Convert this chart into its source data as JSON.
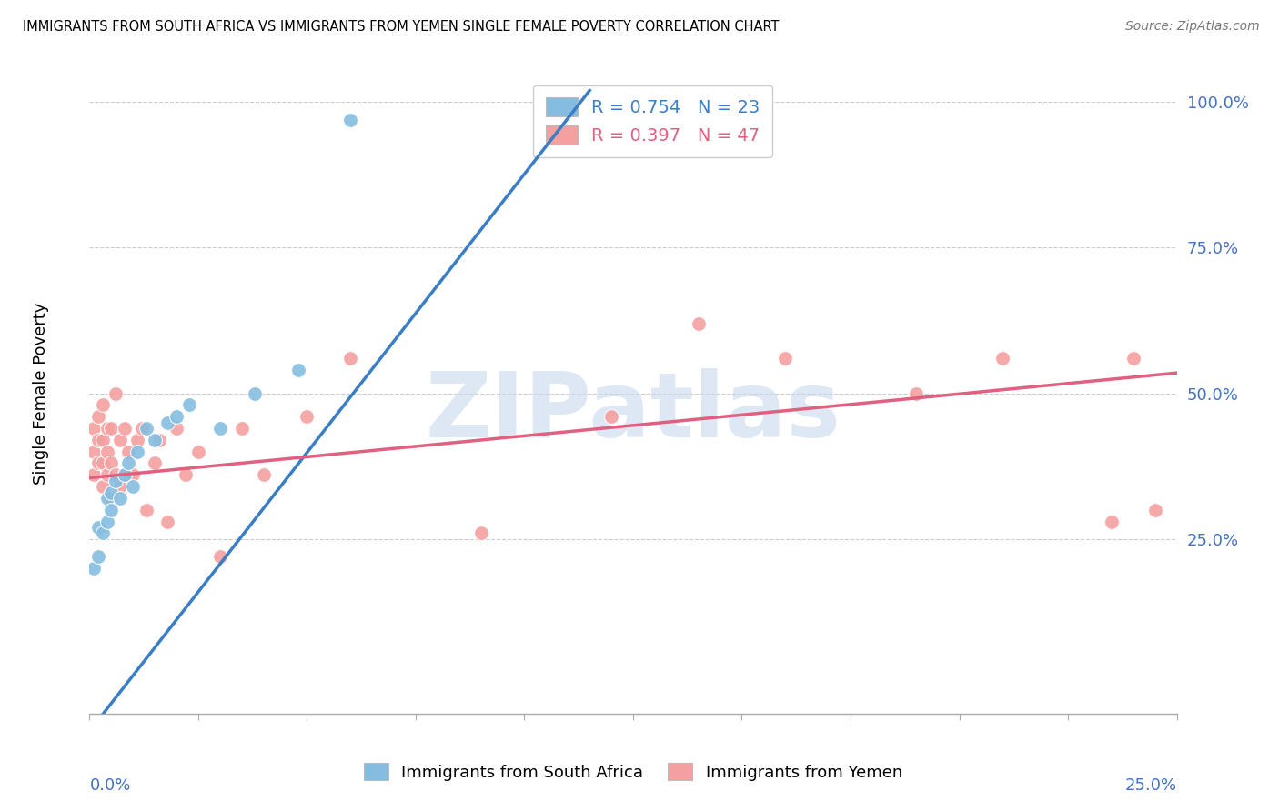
{
  "title": "IMMIGRANTS FROM SOUTH AFRICA VS IMMIGRANTS FROM YEMEN SINGLE FEMALE POVERTY CORRELATION CHART",
  "source": "Source: ZipAtlas.com",
  "ylabel": "Single Female Poverty",
  "legend_blue_r": "0.754",
  "legend_blue_n": "23",
  "legend_pink_r": "0.397",
  "legend_pink_n": "47",
  "watermark": "ZIPatlas",
  "blue_color": "#85bde0",
  "pink_color": "#f4a0a0",
  "blue_line_color": "#3a7ec6",
  "pink_line_color": "#e06080",
  "xlim": [
    0.0,
    0.25
  ],
  "ylim": [
    -0.05,
    1.05
  ],
  "sa_x": [
    0.001,
    0.002,
    0.002,
    0.003,
    0.004,
    0.004,
    0.005,
    0.005,
    0.006,
    0.007,
    0.008,
    0.009,
    0.01,
    0.011,
    0.013,
    0.015,
    0.018,
    0.02,
    0.023,
    0.03,
    0.038,
    0.048,
    0.06
  ],
  "sa_y": [
    0.2,
    0.22,
    0.27,
    0.26,
    0.28,
    0.32,
    0.3,
    0.33,
    0.35,
    0.32,
    0.36,
    0.38,
    0.34,
    0.4,
    0.44,
    0.42,
    0.45,
    0.46,
    0.48,
    0.44,
    0.5,
    0.54,
    0.97
  ],
  "ye_x": [
    0.001,
    0.001,
    0.001,
    0.002,
    0.002,
    0.002,
    0.003,
    0.003,
    0.003,
    0.003,
    0.004,
    0.004,
    0.004,
    0.005,
    0.005,
    0.005,
    0.006,
    0.006,
    0.007,
    0.007,
    0.008,
    0.008,
    0.009,
    0.01,
    0.011,
    0.012,
    0.013,
    0.015,
    0.016,
    0.018,
    0.02,
    0.022,
    0.025,
    0.03,
    0.035,
    0.04,
    0.05,
    0.06,
    0.09,
    0.12,
    0.14,
    0.16,
    0.19,
    0.21,
    0.235,
    0.24,
    0.245
  ],
  "ye_y": [
    0.36,
    0.4,
    0.44,
    0.38,
    0.42,
    0.46,
    0.34,
    0.38,
    0.42,
    0.48,
    0.36,
    0.4,
    0.44,
    0.32,
    0.38,
    0.44,
    0.36,
    0.5,
    0.34,
    0.42,
    0.36,
    0.44,
    0.4,
    0.36,
    0.42,
    0.44,
    0.3,
    0.38,
    0.42,
    0.28,
    0.44,
    0.36,
    0.4,
    0.22,
    0.44,
    0.36,
    0.46,
    0.56,
    0.26,
    0.46,
    0.62,
    0.56,
    0.5,
    0.56,
    0.28,
    0.56,
    0.3
  ],
  "blue_line_x": [
    0.0,
    0.115
  ],
  "blue_line_y": [
    -0.08,
    1.02
  ],
  "pink_line_x": [
    0.0,
    0.25
  ],
  "pink_line_y": [
    0.355,
    0.535
  ]
}
